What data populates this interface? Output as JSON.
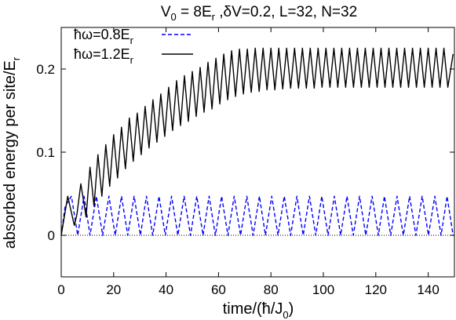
{
  "chart_data": {
    "type": "line",
    "title": "V_0 = 8E_r ,δV=0.2, L=32, N=32",
    "xlabel": "time/(ħ/J_0)",
    "ylabel": "absorbed energy per site/E_r",
    "xlim": [
      0,
      150
    ],
    "ylim": [
      -0.05,
      0.25
    ],
    "xticks": [
      0,
      20,
      40,
      60,
      80,
      100,
      120,
      140
    ],
    "yticks": [
      0,
      0.1,
      0.2
    ],
    "ytick_labels": [
      "0",
      "0.1",
      "0.2"
    ],
    "zero_reference_line": true,
    "grid": false,
    "legend_position": "top-left",
    "series": [
      {
        "name": "ħω=0.8E_r",
        "style": "dashed",
        "color": "#0000ff",
        "x": [
          0,
          1.5,
          3.9,
          6.3,
          8.7,
          11.0,
          13.4,
          15.8,
          18.2,
          20.6,
          23.0,
          25.4,
          27.8,
          30.2,
          32.5,
          34.9,
          37.3,
          39.7,
          42.1,
          44.5,
          46.9,
          49.3,
          51.7,
          54.1,
          56.4,
          58.8,
          61.2,
          63.6,
          66.0,
          68.4,
          70.8,
          73.2,
          75.6,
          77.9,
          80.3,
          82.7,
          85.1,
          87.5,
          89.9,
          92.3,
          94.7,
          97.1,
          99.4,
          101.8,
          104.2,
          106.6,
          109.0,
          111.4,
          113.8,
          116.2,
          118.6,
          121.0,
          123.3,
          125.7,
          128.1,
          130.5,
          132.9,
          135.3,
          137.7,
          140.1,
          142.5,
          144.9,
          147.2,
          149.5
        ],
        "y": [
          0,
          0.035,
          0.047,
          0,
          0.047,
          0,
          0.047,
          0,
          0.047,
          0,
          0.047,
          0,
          0.047,
          0,
          0.047,
          0,
          0.047,
          0,
          0.047,
          0,
          0.047,
          0,
          0.047,
          0,
          0.047,
          0,
          0.047,
          0,
          0.047,
          0,
          0.047,
          0,
          0.047,
          0,
          0.047,
          0,
          0.047,
          0,
          0.047,
          0,
          0.047,
          0,
          0.047,
          0,
          0.047,
          0,
          0.047,
          0,
          0.047,
          0,
          0.047,
          0,
          0.047,
          0,
          0.047,
          0,
          0.047,
          0,
          0.047,
          0,
          0.047,
          0,
          0.047,
          0
        ]
      },
      {
        "name": "ħω=1.2E_r",
        "style": "solid",
        "color": "#000000",
        "x": [
          0,
          2.5,
          5.0,
          6.0,
          7.5,
          9.5,
          11.0,
          12.5,
          14.0,
          15.5,
          17.0,
          18.5,
          20.0,
          21.5,
          23.0,
          24.5,
          26.0,
          27.5,
          29.0,
          30.5,
          32.0,
          33.5,
          35.0,
          36.5,
          38.0,
          39.5,
          41.0,
          42.5,
          44.0,
          45.5,
          47.0,
          48.5,
          50.0,
          51.5,
          53.0,
          54.5,
          56.0,
          57.5,
          59.0,
          60.5,
          62.0,
          63.5,
          65.0,
          66.5,
          68.0,
          69.5,
          71.0,
          72.5,
          74.0,
          75.5,
          77.0,
          78.5,
          80.0,
          81.5,
          83.0,
          84.5,
          86.0,
          87.5,
          89.0,
          90.5,
          92.0,
          93.5,
          95.0,
          96.5,
          98.0,
          99.5,
          101.0,
          102.5,
          104.0,
          105.5,
          107.0,
          108.5,
          110.0,
          111.5,
          113.0,
          114.5,
          116.0,
          117.5,
          119.0,
          120.5,
          122.0,
          123.5,
          125.0,
          126.5,
          128.0,
          129.5,
          131.0,
          132.5,
          134.0,
          135.5,
          137.0,
          138.5,
          140.0,
          141.5,
          143.0,
          144.5,
          146.0,
          147.5,
          149.5
        ],
        "y": [
          0,
          0.047,
          0.012,
          0.025,
          0.062,
          0.022,
          0.082,
          0.035,
          0.097,
          0.047,
          0.109,
          0.059,
          0.121,
          0.069,
          0.13,
          0.08,
          0.141,
          0.089,
          0.147,
          0.097,
          0.155,
          0.105,
          0.163,
          0.112,
          0.17,
          0.119,
          0.178,
          0.126,
          0.186,
          0.132,
          0.192,
          0.137,
          0.197,
          0.143,
          0.202,
          0.148,
          0.208,
          0.152,
          0.213,
          0.158,
          0.218,
          0.163,
          0.222,
          0.167,
          0.224,
          0.17,
          0.224,
          0.172,
          0.225,
          0.173,
          0.225,
          0.175,
          0.225,
          0.175,
          0.225,
          0.176,
          0.225,
          0.177,
          0.225,
          0.177,
          0.225,
          0.177,
          0.225,
          0.177,
          0.225,
          0.178,
          0.225,
          0.178,
          0.225,
          0.178,
          0.225,
          0.178,
          0.225,
          0.178,
          0.225,
          0.178,
          0.225,
          0.178,
          0.225,
          0.178,
          0.225,
          0.178,
          0.225,
          0.178,
          0.225,
          0.178,
          0.225,
          0.178,
          0.225,
          0.178,
          0.225,
          0.178,
          0.225,
          0.178,
          0.225,
          0.178,
          0.225,
          0.178,
          0.218
        ]
      }
    ]
  }
}
